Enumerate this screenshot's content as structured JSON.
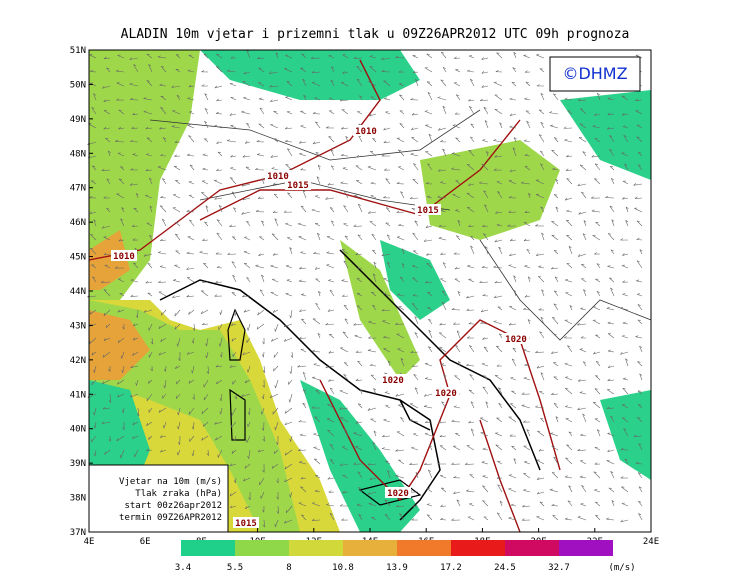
{
  "title": "ALADIN 10m vjetar i prizemni tlak u 09Z26APR2012 UTC 09h prognoza",
  "credit": "©DHMZ",
  "lat_labels": [
    "51N",
    "50N",
    "49N",
    "48N",
    "47N",
    "46N",
    "45N",
    "44N",
    "43N",
    "42N",
    "41N",
    "40N",
    "39N",
    "38N",
    "37N"
  ],
  "lon_labels": [
    "4E",
    "6E",
    "8E",
    "10E",
    "12E",
    "14E",
    "16E",
    "18E",
    "20E",
    "22E",
    "24E"
  ],
  "isobar_labels": [
    "1010",
    "1010",
    "1015",
    "1015",
    "1010",
    "1020",
    "1020",
    "1020",
    "1020",
    "1015"
  ],
  "legend": [
    "Vjetar na 10m (m/s)",
    "Tlak zraka (hPa)",
    "start 00z26apr2012",
    "termin 09Z26APR2012"
  ],
  "colorbar": {
    "labels": [
      "3.4",
      "5.5",
      "8",
      "10.8",
      "13.9",
      "17.2",
      "24.5",
      "32.7"
    ],
    "unit": "(m/s)"
  }
}
